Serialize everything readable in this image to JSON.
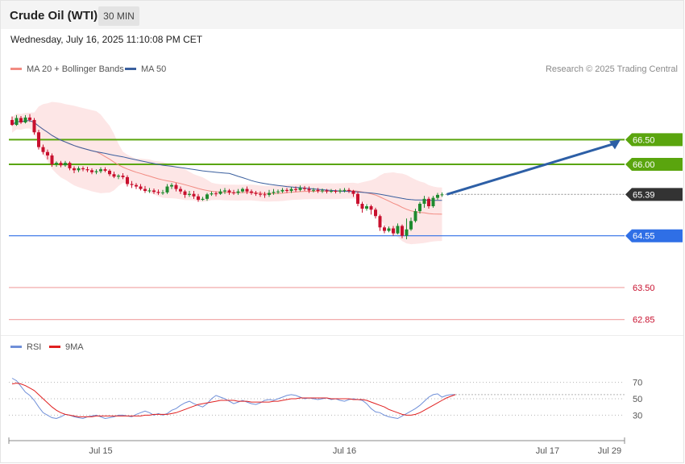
{
  "header": {
    "title": "Crude Oil (WTI)",
    "timeframe": "30 MIN",
    "timestamp": "Wednesday, July 16, 2025 11:10:08 PM CET"
  },
  "legend": {
    "ma20_label": "MA 20 + Bollinger Bands",
    "ma50_label": "MA 50",
    "copyright": "Research © 2025 Trading Central"
  },
  "rsi_legend": {
    "rsi_label": "RSI",
    "ma_label": "9MA"
  },
  "colors": {
    "up": "#1e8a2e",
    "down": "#c8102e",
    "band": "#fde3e3",
    "ma20": "#f28b82",
    "ma50": "#3a5f9e",
    "resistance": "#5aa50e",
    "support": "#2f6fe6",
    "support2": "#f0a0a0",
    "rsi": "#6f8fd8",
    "rsi_ma": "#e02020"
  },
  "chart_data": [
    {
      "type": "candlestick",
      "y_range": [
        62.6,
        67.7
      ],
      "x_ticks": [
        "Jul 15",
        "Jul 16",
        "Jul 17",
        "Jul 29"
      ],
      "x_tick_index": [
        20,
        75,
        120.8,
        134.8
      ],
      "candles": [
        [
          66.9,
          66.8,
          66.97,
          66.78
        ],
        [
          66.8,
          66.94,
          67.0,
          66.78
        ],
        [
          66.94,
          66.85,
          66.98,
          66.82
        ],
        [
          66.85,
          66.95,
          67.0,
          66.83
        ],
        [
          66.95,
          66.9,
          67.02,
          66.86
        ],
        [
          66.9,
          66.65,
          66.94,
          66.6
        ],
        [
          66.65,
          66.35,
          66.7,
          66.3
        ],
        [
          66.35,
          66.25,
          66.4,
          66.2
        ],
        [
          66.25,
          66.18,
          66.3,
          66.1
        ],
        [
          66.18,
          66.0,
          66.22,
          65.95
        ],
        [
          66.0,
          66.03,
          66.06,
          65.95
        ],
        [
          66.03,
          65.98,
          66.07,
          65.94
        ],
        [
          65.98,
          66.03,
          66.07,
          65.95
        ],
        [
          66.03,
          65.92,
          66.06,
          65.88
        ],
        [
          65.92,
          65.88,
          65.96,
          65.82
        ],
        [
          65.88,
          65.92,
          65.96,
          65.84
        ],
        [
          65.92,
          65.9,
          65.96,
          65.86
        ],
        [
          65.9,
          65.88,
          65.95,
          65.84
        ],
        [
          65.88,
          65.84,
          65.92,
          65.8
        ],
        [
          65.84,
          65.86,
          65.9,
          65.8
        ],
        [
          65.86,
          65.9,
          65.94,
          65.82
        ],
        [
          65.9,
          65.87,
          65.94,
          65.84
        ],
        [
          65.87,
          65.8,
          65.9,
          65.76
        ],
        [
          65.8,
          65.75,
          65.85,
          65.72
        ],
        [
          65.75,
          65.77,
          65.8,
          65.7
        ],
        [
          65.77,
          65.74,
          65.82,
          65.7
        ],
        [
          65.74,
          65.6,
          65.78,
          65.55
        ],
        [
          65.6,
          65.58,
          65.66,
          65.52
        ],
        [
          65.58,
          65.55,
          65.62,
          65.5
        ],
        [
          65.55,
          65.5,
          65.6,
          65.47
        ],
        [
          65.5,
          65.46,
          65.56,
          65.42
        ],
        [
          65.46,
          65.47,
          65.52,
          65.42
        ],
        [
          65.47,
          65.44,
          65.51,
          65.4
        ],
        [
          65.44,
          65.42,
          65.49,
          65.38
        ],
        [
          65.42,
          65.43,
          65.48,
          65.38
        ],
        [
          65.43,
          65.55,
          65.6,
          65.4
        ],
        [
          65.55,
          65.58,
          65.62,
          65.5
        ],
        [
          65.58,
          65.5,
          65.62,
          65.45
        ],
        [
          65.5,
          65.45,
          65.55,
          65.4
        ],
        [
          65.45,
          65.38,
          65.48,
          65.32
        ],
        [
          65.38,
          65.4,
          65.46,
          65.34
        ],
        [
          65.4,
          65.35,
          65.46,
          65.3
        ],
        [
          65.35,
          65.28,
          65.4,
          65.24
        ],
        [
          65.28,
          65.3,
          65.34,
          65.26
        ],
        [
          65.3,
          65.39,
          65.42,
          65.26
        ],
        [
          65.39,
          65.41,
          65.45,
          65.36
        ],
        [
          65.41,
          65.4,
          65.45,
          65.35
        ],
        [
          65.4,
          65.45,
          65.5,
          65.38
        ],
        [
          65.45,
          65.47,
          65.52,
          65.4
        ],
        [
          65.47,
          65.43,
          65.5,
          65.38
        ],
        [
          65.43,
          65.42,
          65.48,
          65.38
        ],
        [
          65.42,
          65.45,
          65.5,
          65.38
        ],
        [
          65.45,
          65.5,
          65.53,
          65.42
        ],
        [
          65.5,
          65.45,
          65.55,
          65.4
        ],
        [
          65.45,
          65.42,
          65.49,
          65.38
        ],
        [
          65.42,
          65.4,
          65.46,
          65.36
        ],
        [
          65.4,
          65.39,
          65.45,
          65.34
        ],
        [
          65.39,
          65.38,
          65.44,
          65.32
        ],
        [
          65.38,
          65.42,
          65.48,
          65.34
        ],
        [
          65.42,
          65.44,
          65.5,
          65.38
        ],
        [
          65.44,
          65.45,
          65.49,
          65.4
        ],
        [
          65.45,
          65.48,
          65.52,
          65.42
        ],
        [
          65.48,
          65.46,
          65.52,
          65.42
        ],
        [
          65.46,
          65.5,
          65.54,
          65.42
        ],
        [
          65.5,
          65.48,
          65.55,
          65.44
        ],
        [
          65.48,
          65.52,
          65.57,
          65.45
        ],
        [
          65.52,
          65.5,
          65.56,
          65.46
        ],
        [
          65.5,
          65.47,
          65.55,
          65.42
        ],
        [
          65.47,
          65.48,
          65.52,
          65.43
        ],
        [
          65.48,
          65.46,
          65.52,
          65.42
        ],
        [
          65.46,
          65.47,
          65.51,
          65.42
        ],
        [
          65.47,
          65.45,
          65.5,
          65.41
        ],
        [
          65.45,
          65.46,
          65.5,
          65.42
        ],
        [
          65.46,
          65.45,
          65.49,
          65.41
        ],
        [
          65.45,
          65.47,
          65.51,
          65.41
        ],
        [
          65.47,
          65.48,
          65.52,
          65.43
        ],
        [
          65.48,
          65.46,
          65.52,
          65.42
        ],
        [
          65.46,
          65.4,
          65.48,
          65.34
        ],
        [
          65.4,
          65.2,
          65.44,
          65.15
        ],
        [
          65.2,
          65.1,
          65.24,
          65.02
        ],
        [
          65.1,
          65.15,
          65.19,
          65.06
        ],
        [
          65.15,
          65.08,
          65.18,
          64.98
        ],
        [
          65.08,
          64.95,
          65.12,
          64.9
        ],
        [
          64.95,
          64.72,
          64.98,
          64.65
        ],
        [
          64.72,
          64.65,
          64.76,
          64.6
        ],
        [
          64.65,
          64.7,
          64.74,
          64.62
        ],
        [
          64.7,
          64.6,
          64.75,
          64.55
        ],
        [
          64.6,
          64.75,
          64.8,
          64.58
        ],
        [
          64.75,
          64.55,
          64.78,
          64.5
        ],
        [
          64.55,
          64.68,
          64.9,
          64.48
        ],
        [
          64.68,
          64.85,
          64.92,
          64.65
        ],
        [
          64.85,
          65.05,
          65.1,
          64.82
        ],
        [
          65.05,
          65.2,
          65.24,
          65.0
        ],
        [
          65.2,
          65.3,
          65.36,
          65.12
        ],
        [
          65.3,
          65.15,
          65.34,
          65.1
        ],
        [
          65.15,
          65.32,
          65.36,
          65.12
        ],
        [
          65.32,
          65.38,
          65.42,
          65.28
        ],
        [
          65.38,
          65.39,
          65.43,
          65.34
        ]
      ]
    },
    {
      "type": "line",
      "y_range": [
        0,
        100
      ],
      "y_ticks": [
        70,
        50,
        30
      ],
      "series": [
        {
          "name": "RSI",
          "values": [
            75,
            72,
            65,
            58,
            54,
            48,
            40,
            33,
            30,
            27,
            26,
            28,
            31,
            30,
            28,
            27,
            26,
            28,
            29,
            30,
            28,
            26,
            27,
            28,
            30,
            30,
            29,
            28,
            31,
            33,
            35,
            33,
            30,
            32,
            30,
            32,
            36,
            38,
            42,
            45,
            47,
            44,
            42,
            40,
            44,
            50,
            54,
            52,
            50,
            47,
            44,
            46,
            48,
            46,
            44,
            43,
            45,
            48,
            49,
            48,
            50,
            52,
            54,
            55,
            54,
            52,
            50,
            51,
            50,
            49,
            50,
            51,
            49,
            50,
            48,
            47,
            49,
            50,
            49,
            48,
            44,
            38,
            34,
            33,
            30,
            28,
            27,
            26,
            29,
            32,
            35,
            38,
            42,
            47,
            52,
            55,
            56,
            52,
            54,
            55,
            55
          ]
        },
        {
          "name": "9MA",
          "values": [
            68,
            69,
            68,
            66,
            63,
            60,
            55,
            50,
            45,
            40,
            36,
            33,
            31,
            30,
            29,
            28,
            28,
            28,
            28,
            29,
            29,
            29,
            29,
            29,
            29,
            29,
            29,
            29,
            29,
            29,
            30,
            30,
            31,
            31,
            31,
            31,
            32,
            33,
            35,
            37,
            39,
            41,
            43,
            44,
            45,
            46,
            47,
            48,
            48,
            48,
            48,
            47,
            47,
            47,
            46,
            46,
            46,
            46,
            46,
            47,
            47,
            48,
            49,
            50,
            50,
            51,
            51,
            51,
            51,
            51,
            51,
            51,
            50,
            50,
            50,
            50,
            50,
            49,
            49,
            49,
            48,
            46,
            44,
            42,
            40,
            37,
            35,
            33,
            31,
            30,
            30,
            31,
            33,
            36,
            39,
            42,
            45,
            48,
            51,
            53,
            55
          ]
        }
      ]
    }
  ],
  "levels": [
    {
      "label": "66.50",
      "value": 66.5,
      "kind": "resistance"
    },
    {
      "label": "66.00",
      "value": 66.0,
      "kind": "resistance"
    },
    {
      "label": "65.39",
      "value": 65.39,
      "kind": "last"
    },
    {
      "label": "64.55",
      "value": 64.55,
      "kind": "support"
    },
    {
      "label": "63.50",
      "value": 63.5,
      "kind": "support2"
    },
    {
      "label": "62.85",
      "value": 62.85,
      "kind": "support2"
    }
  ]
}
